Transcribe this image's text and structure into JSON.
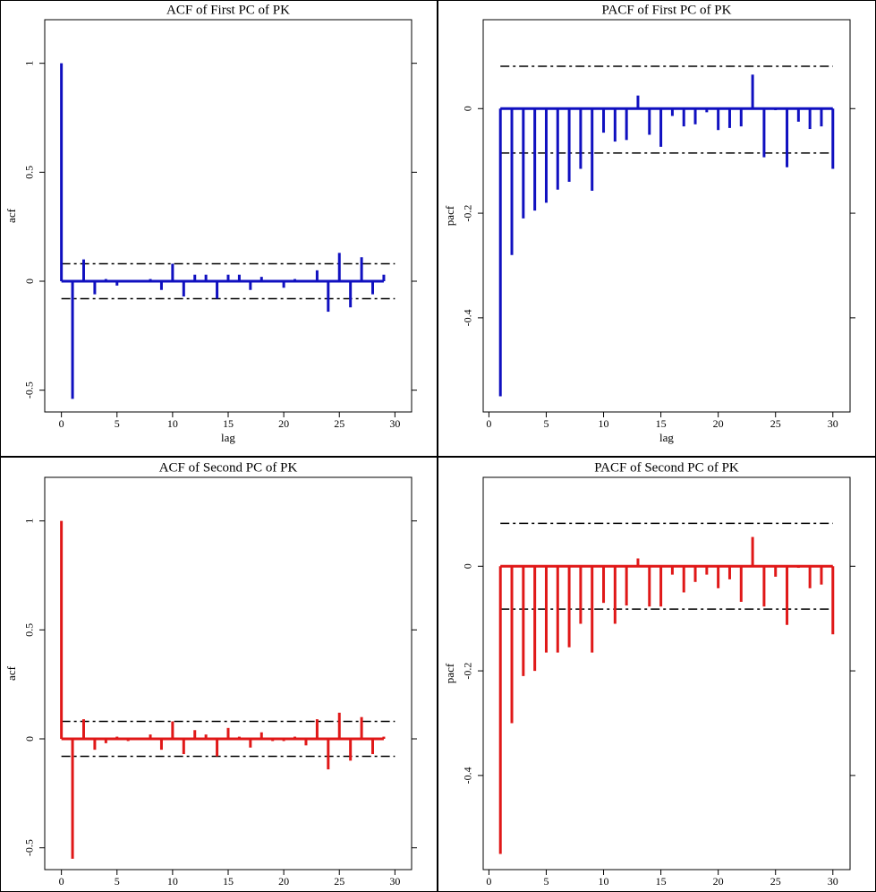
{
  "chart_data": [
    {
      "type": "bar",
      "title": "ACF of First PC of PK",
      "xlabel": "lag",
      "ylabel": "acf",
      "color": "#1010c0",
      "x": [
        0,
        1,
        2,
        3,
        4,
        5,
        6,
        7,
        8,
        9,
        10,
        11,
        12,
        13,
        14,
        15,
        16,
        17,
        18,
        19,
        20,
        21,
        22,
        23,
        24,
        25,
        26,
        27,
        28,
        29
      ],
      "values": [
        1,
        -0.54,
        0.1,
        -0.06,
        0.01,
        -0.02,
        0.0,
        0.0,
        0.01,
        -0.04,
        0.08,
        -0.07,
        0.03,
        0.03,
        -0.08,
        0.03,
        0.03,
        -0.04,
        0.02,
        0.0,
        -0.03,
        0.01,
        0.0,
        0.05,
        -0.14,
        0.13,
        -0.12,
        0.11,
        -0.06,
        0.03
      ],
      "bounds": [
        -0.08,
        0.08
      ],
      "xlim": [
        -1.5,
        31.5
      ],
      "ylim": [
        -0.6,
        1.2
      ],
      "xticks": [
        0,
        5,
        10,
        15,
        20,
        25,
        30
      ],
      "yticks": [
        -0.5,
        0,
        0.5,
        1
      ]
    },
    {
      "type": "bar",
      "title": "PACF of First PC of PK",
      "xlabel": "lag",
      "ylabel": "pacf",
      "color": "#1010c0",
      "x": [
        1,
        2,
        3,
        4,
        5,
        6,
        7,
        8,
        9,
        10,
        11,
        12,
        13,
        14,
        15,
        16,
        17,
        18,
        19,
        20,
        21,
        22,
        23,
        24,
        25,
        26,
        27,
        28,
        29,
        30
      ],
      "values": [
        -0.55,
        -0.28,
        -0.21,
        -0.195,
        -0.18,
        -0.155,
        -0.14,
        -0.115,
        -0.157,
        -0.046,
        -0.063,
        -0.06,
        0.025,
        -0.05,
        -0.073,
        -0.014,
        -0.034,
        -0.03,
        -0.007,
        -0.041,
        -0.037,
        -0.034,
        0.065,
        -0.093,
        -0.003,
        -0.112,
        -0.025,
        -0.039,
        -0.034,
        -0.115
      ],
      "bounds": [
        -0.085,
        0.081
      ],
      "xlim": [
        -0.5,
        31.5
      ],
      "ylim": [
        -0.58,
        0.17
      ],
      "xticks": [
        0,
        5,
        10,
        15,
        20,
        25,
        30
      ],
      "yticks": [
        -0.4,
        -0.2,
        0
      ]
    },
    {
      "type": "bar",
      "title": "ACF of Second PC of PK",
      "xlabel": "lag",
      "ylabel": "acf",
      "color": "#e01818",
      "x": [
        0,
        1,
        2,
        3,
        4,
        5,
        6,
        7,
        8,
        9,
        10,
        11,
        12,
        13,
        14,
        15,
        16,
        17,
        18,
        19,
        20,
        21,
        22,
        23,
        24,
        25,
        26,
        27,
        28,
        29
      ],
      "values": [
        1,
        -0.55,
        0.09,
        -0.05,
        -0.02,
        0.01,
        -0.01,
        0.0,
        0.02,
        -0.05,
        0.08,
        -0.07,
        0.04,
        0.02,
        -0.08,
        0.05,
        0.01,
        -0.04,
        0.03,
        -0.01,
        -0.01,
        0.01,
        -0.03,
        0.09,
        -0.14,
        0.12,
        -0.1,
        0.1,
        -0.07,
        0.01
      ],
      "bounds": [
        -0.08,
        0.08
      ],
      "xlim": [
        -1.5,
        31.5
      ],
      "ylim": [
        -0.6,
        1.2
      ],
      "xticks": [
        0,
        5,
        10,
        15,
        20,
        25,
        30
      ],
      "yticks": [
        -0.5,
        0,
        0.5,
        1
      ]
    },
    {
      "type": "bar",
      "title": "PACF of Second PC of PK",
      "xlabel": "lag",
      "ylabel": "pacf",
      "color": "#e01818",
      "x": [
        1,
        2,
        3,
        4,
        5,
        6,
        7,
        8,
        9,
        10,
        11,
        12,
        13,
        14,
        15,
        16,
        17,
        18,
        19,
        20,
        21,
        22,
        23,
        24,
        25,
        26,
        27,
        28,
        29,
        30
      ],
      "values": [
        -0.55,
        -0.3,
        -0.21,
        -0.2,
        -0.165,
        -0.165,
        -0.155,
        -0.11,
        -0.165,
        -0.07,
        -0.11,
        -0.075,
        0.015,
        -0.077,
        -0.077,
        -0.016,
        -0.05,
        -0.03,
        -0.016,
        -0.042,
        -0.025,
        -0.068,
        0.056,
        -0.077,
        -0.02,
        -0.112,
        -0.003,
        -0.042,
        -0.035,
        -0.13
      ],
      "bounds": [
        -0.082,
        0.082
      ],
      "xlim": [
        -0.5,
        31.5
      ],
      "ylim": [
        -0.58,
        0.17
      ],
      "xticks": [
        0,
        5,
        10,
        15,
        20,
        25,
        30
      ],
      "yticks": [
        -0.4,
        -0.2,
        0
      ]
    }
  ]
}
